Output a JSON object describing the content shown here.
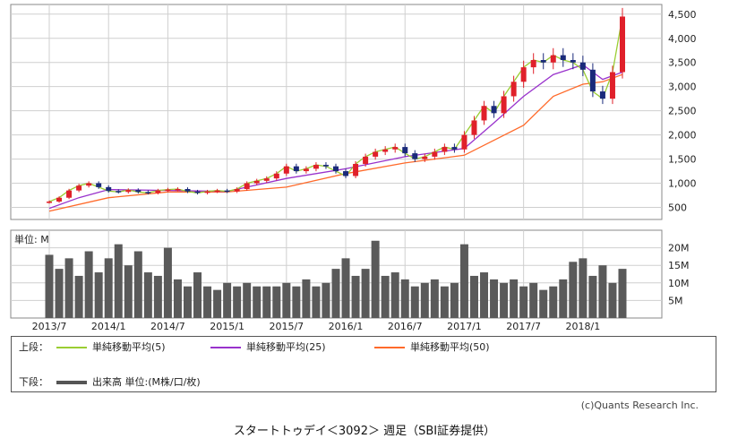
{
  "chart_data": {
    "type": "candlestick",
    "price_axis": {
      "ylim": [
        250,
        4700
      ],
      "ticks": [
        500,
        1000,
        1500,
        2000,
        2500,
        3000,
        3500,
        4000,
        4500
      ],
      "tick_labels": [
        "500",
        "1,000",
        "1,500",
        "2,000",
        "2,500",
        "3,000",
        "3,500",
        "4,000",
        "4,500"
      ]
    },
    "volume_axis": {
      "unit_label": "単位: M",
      "ylim": [
        0,
        25
      ],
      "ticks": [
        5,
        10,
        15,
        20
      ],
      "tick_labels": [
        "5M",
        "10M",
        "15M",
        "20M"
      ]
    },
    "x_axis": {
      "range": [
        "2013-07",
        "2018-05"
      ],
      "ticks": [
        "2013-07",
        "2014-01",
        "2014-07",
        "2015-01",
        "2015-07",
        "2016-01",
        "2016-07",
        "2017-01",
        "2017-07",
        "2018-01"
      ],
      "tick_labels": [
        "2013/7",
        "2014/1",
        "2014/7",
        "2015/1",
        "2015/7",
        "2016/1",
        "2016/7",
        "2017/1",
        "2017/7",
        "2018/1"
      ]
    },
    "weekly_close": [
      {
        "x": "2013-07",
        "y": 620
      },
      {
        "x": "2013-08",
        "y": 700
      },
      {
        "x": "2013-09",
        "y": 850
      },
      {
        "x": "2013-10",
        "y": 950
      },
      {
        "x": "2013-11",
        "y": 1000
      },
      {
        "x": "2013-12",
        "y": 920
      },
      {
        "x": "2014-01",
        "y": 840
      },
      {
        "x": "2014-02",
        "y": 820
      },
      {
        "x": "2014-03",
        "y": 860
      },
      {
        "x": "2014-04",
        "y": 820
      },
      {
        "x": "2014-05",
        "y": 800
      },
      {
        "x": "2014-06",
        "y": 850
      },
      {
        "x": "2014-07",
        "y": 870
      },
      {
        "x": "2014-08",
        "y": 880
      },
      {
        "x": "2014-09",
        "y": 830
      },
      {
        "x": "2014-10",
        "y": 800
      },
      {
        "x": "2014-11",
        "y": 830
      },
      {
        "x": "2014-12",
        "y": 850
      },
      {
        "x": "2015-01",
        "y": 830
      },
      {
        "x": "2015-02",
        "y": 880
      },
      {
        "x": "2015-03",
        "y": 1000
      },
      {
        "x": "2015-04",
        "y": 1050
      },
      {
        "x": "2015-05",
        "y": 1100
      },
      {
        "x": "2015-06",
        "y": 1200
      },
      {
        "x": "2015-07",
        "y": 1350
      },
      {
        "x": "2015-08",
        "y": 1250
      },
      {
        "x": "2015-09",
        "y": 1300
      },
      {
        "x": "2015-10",
        "y": 1380
      },
      {
        "x": "2015-11",
        "y": 1350
      },
      {
        "x": "2015-12",
        "y": 1250
      },
      {
        "x": "2016-01",
        "y": 1150
      },
      {
        "x": "2016-02",
        "y": 1400
      },
      {
        "x": "2016-03",
        "y": 1550
      },
      {
        "x": "2016-04",
        "y": 1650
      },
      {
        "x": "2016-05",
        "y": 1700
      },
      {
        "x": "2016-06",
        "y": 1750
      },
      {
        "x": "2016-07",
        "y": 1620
      },
      {
        "x": "2016-08",
        "y": 1500
      },
      {
        "x": "2016-09",
        "y": 1550
      },
      {
        "x": "2016-10",
        "y": 1650
      },
      {
        "x": "2016-11",
        "y": 1750
      },
      {
        "x": "2016-12",
        "y": 1700
      },
      {
        "x": "2017-01",
        "y": 2000
      },
      {
        "x": "2017-02",
        "y": 2300
      },
      {
        "x": "2017-03",
        "y": 2600
      },
      {
        "x": "2017-04",
        "y": 2450
      },
      {
        "x": "2017-05",
        "y": 2800
      },
      {
        "x": "2017-06",
        "y": 3100
      },
      {
        "x": "2017-07",
        "y": 3400
      },
      {
        "x": "2017-08",
        "y": 3550
      },
      {
        "x": "2017-09",
        "y": 3500
      },
      {
        "x": "2017-10",
        "y": 3650
      },
      {
        "x": "2017-11",
        "y": 3550
      },
      {
        "x": "2017-12",
        "y": 3500
      },
      {
        "x": "2018-01",
        "y": 3350
      },
      {
        "x": "2018-02",
        "y": 2900
      },
      {
        "x": "2018-03",
        "y": 2750
      },
      {
        "x": "2018-04",
        "y": 3300
      },
      {
        "x": "2018-05",
        "y": 4450
      }
    ],
    "series": [
      {
        "name": "単純移動平均(5)",
        "color": "#9acd32"
      },
      {
        "name": "単純移動平均(25)",
        "color": "#9932cc",
        "values": [
          {
            "x": "2013-07",
            "y": 480
          },
          {
            "x": "2013-10",
            "y": 700
          },
          {
            "x": "2014-01",
            "y": 870
          },
          {
            "x": "2014-07",
            "y": 850
          },
          {
            "x": "2015-01",
            "y": 830
          },
          {
            "x": "2015-07",
            "y": 1100
          },
          {
            "x": "2016-01",
            "y": 1300
          },
          {
            "x": "2016-07",
            "y": 1550
          },
          {
            "x": "2017-01",
            "y": 1720
          },
          {
            "x": "2017-04",
            "y": 2250
          },
          {
            "x": "2017-07",
            "y": 2800
          },
          {
            "x": "2017-10",
            "y": 3250
          },
          {
            "x": "2018-01",
            "y": 3450
          },
          {
            "x": "2018-03",
            "y": 3150
          },
          {
            "x": "2018-05",
            "y": 3300
          }
        ]
      },
      {
        "name": "単純移動平均(50)",
        "color": "#ff6a2a",
        "values": [
          {
            "x": "2013-07",
            "y": 420
          },
          {
            "x": "2014-01",
            "y": 700
          },
          {
            "x": "2014-07",
            "y": 820
          },
          {
            "x": "2015-01",
            "y": 820
          },
          {
            "x": "2015-07",
            "y": 920
          },
          {
            "x": "2016-01",
            "y": 1200
          },
          {
            "x": "2016-07",
            "y": 1420
          },
          {
            "x": "2017-01",
            "y": 1580
          },
          {
            "x": "2017-07",
            "y": 2200
          },
          {
            "x": "2017-10",
            "y": 2800
          },
          {
            "x": "2018-01",
            "y": 3050
          },
          {
            "x": "2018-03",
            "y": 3100
          },
          {
            "x": "2018-05",
            "y": 3250
          }
        ]
      }
    ],
    "volume": [
      {
        "x": "2013-07",
        "y": 18
      },
      {
        "x": "2013-08",
        "y": 14
      },
      {
        "x": "2013-09",
        "y": 17
      },
      {
        "x": "2013-10",
        "y": 12
      },
      {
        "x": "2013-11",
        "y": 19
      },
      {
        "x": "2013-12",
        "y": 13
      },
      {
        "x": "2014-01",
        "y": 17
      },
      {
        "x": "2014-02",
        "y": 21
      },
      {
        "x": "2014-03",
        "y": 15
      },
      {
        "x": "2014-04",
        "y": 19
      },
      {
        "x": "2014-05",
        "y": 13
      },
      {
        "x": "2014-06",
        "y": 12
      },
      {
        "x": "2014-07",
        "y": 20
      },
      {
        "x": "2014-08",
        "y": 11
      },
      {
        "x": "2014-09",
        "y": 9
      },
      {
        "x": "2014-10",
        "y": 13
      },
      {
        "x": "2014-11",
        "y": 9
      },
      {
        "x": "2014-12",
        "y": 8
      },
      {
        "x": "2015-01",
        "y": 10
      },
      {
        "x": "2015-02",
        "y": 9
      },
      {
        "x": "2015-03",
        "y": 10
      },
      {
        "x": "2015-04",
        "y": 9
      },
      {
        "x": "2015-05",
        "y": 9
      },
      {
        "x": "2015-06",
        "y": 9
      },
      {
        "x": "2015-07",
        "y": 10
      },
      {
        "x": "2015-08",
        "y": 9
      },
      {
        "x": "2015-09",
        "y": 11
      },
      {
        "x": "2015-10",
        "y": 9
      },
      {
        "x": "2015-11",
        "y": 10
      },
      {
        "x": "2015-12",
        "y": 14
      },
      {
        "x": "2016-01",
        "y": 17
      },
      {
        "x": "2016-02",
        "y": 12
      },
      {
        "x": "2016-03",
        "y": 14
      },
      {
        "x": "2016-04",
        "y": 22
      },
      {
        "x": "2016-05",
        "y": 12
      },
      {
        "x": "2016-06",
        "y": 13
      },
      {
        "x": "2016-07",
        "y": 11
      },
      {
        "x": "2016-08",
        "y": 9
      },
      {
        "x": "2016-09",
        "y": 10
      },
      {
        "x": "2016-10",
        "y": 11
      },
      {
        "x": "2016-11",
        "y": 9
      },
      {
        "x": "2016-12",
        "y": 10
      },
      {
        "x": "2017-01",
        "y": 21
      },
      {
        "x": "2017-02",
        "y": 12
      },
      {
        "x": "2017-03",
        "y": 13
      },
      {
        "x": "2017-04",
        "y": 11
      },
      {
        "x": "2017-05",
        "y": 10
      },
      {
        "x": "2017-06",
        "y": 11
      },
      {
        "x": "2017-07",
        "y": 9
      },
      {
        "x": "2017-08",
        "y": 10
      },
      {
        "x": "2017-09",
        "y": 8
      },
      {
        "x": "2017-10",
        "y": 9
      },
      {
        "x": "2017-11",
        "y": 11
      },
      {
        "x": "2017-12",
        "y": 16
      },
      {
        "x": "2018-01",
        "y": 17
      },
      {
        "x": "2018-02",
        "y": 12
      },
      {
        "x": "2018-03",
        "y": 15
      },
      {
        "x": "2018-04",
        "y": 10
      },
      {
        "x": "2018-05",
        "y": 14
      }
    ]
  },
  "legend": {
    "upper_label": "上段：",
    "lower_label": "下段：",
    "items": [
      {
        "name": "単純移動平均(5)",
        "color": "#9acd32"
      },
      {
        "name": "単純移動平均(25)",
        "color": "#9932cc"
      },
      {
        "name": "単純移動平均(50)",
        "color": "#ff6a2a"
      }
    ],
    "volume_item": {
      "name": "出来高 単位:(M株/口/枚)",
      "color": "#555555"
    }
  },
  "credit": "(c)Quants Research Inc.",
  "caption": "スタートトゥデイ＜3092＞ 週足（SBI証券提供）"
}
